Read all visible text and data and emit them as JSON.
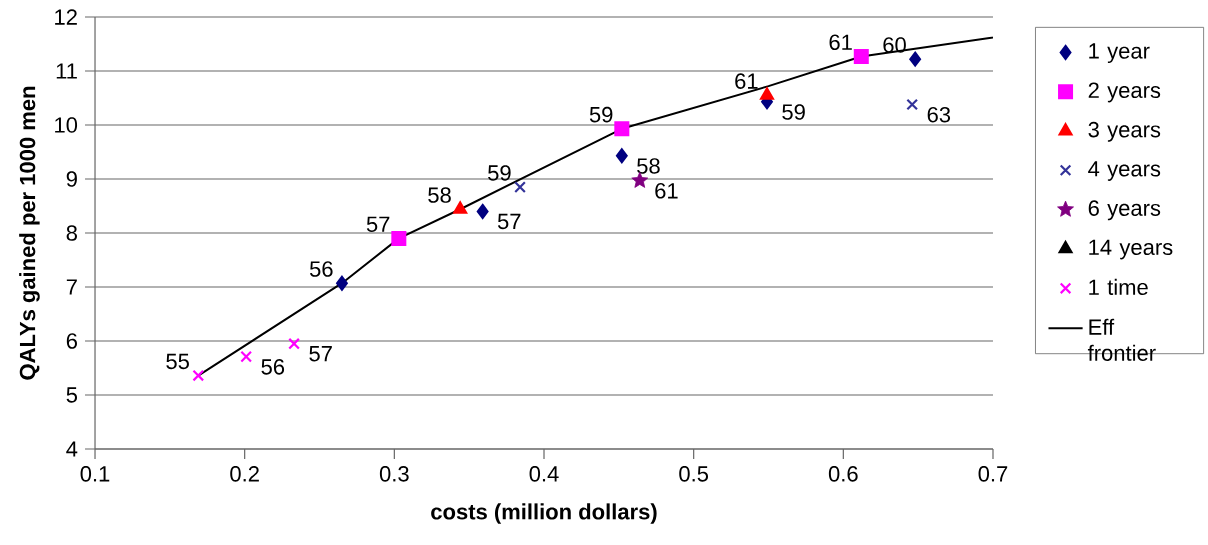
{
  "chart_data": {
    "type": "scatter",
    "xlabel": "costs (million  dollars)",
    "ylabel": "QALYs gained per 1000 men",
    "xlim": [
      0.1,
      0.7
    ],
    "ylim": [
      4,
      12
    ],
    "xticks": [
      0.1,
      0.2,
      0.3,
      0.4,
      0.5,
      0.6,
      0.7
    ],
    "yticks": [
      4,
      5,
      6,
      7,
      8,
      9,
      10,
      11,
      12
    ],
    "grid": "y",
    "legend": "right",
    "series": [
      {
        "name": "1 year",
        "color": "#000080",
        "marker": "diamond",
        "x": [
          0.265,
          0.359,
          0.452,
          0.549,
          0.648
        ],
        "values": [
          7.07,
          8.4,
          9.43,
          10.43,
          11.22
        ]
      },
      {
        "name": "2 years",
        "color": "#ff00ff",
        "marker": "square",
        "x": [
          0.303,
          0.452,
          0.612
        ],
        "values": [
          7.9,
          9.93,
          11.27
        ]
      },
      {
        "name": "3 years",
        "color": "#ff0000",
        "marker": "triangle",
        "x": [
          0.344,
          0.549
        ],
        "values": [
          8.44,
          10.55
        ]
      },
      {
        "name": "4 years",
        "color": "#333399",
        "marker": "cross",
        "x": [
          0.384,
          0.646
        ],
        "values": [
          8.85,
          10.38
        ]
      },
      {
        "name": "6 years",
        "color": "#800080",
        "marker": "star",
        "x": [
          0.464
        ],
        "values": [
          8.97
        ]
      },
      {
        "name": "14 years",
        "color": "#000000",
        "marker": "triangle"
      },
      {
        "name": "1 time",
        "color": "#ff00ff",
        "marker": "cross",
        "x": [
          0.169,
          0.201,
          0.233
        ],
        "values": [
          5.36,
          5.71,
          5.95
        ]
      },
      {
        "name": "Eff frontier",
        "type": "line",
        "color": "#000000",
        "marker": "none",
        "line_style": "solid",
        "x": [
          0.169,
          0.265,
          0.303,
          0.344,
          0.452,
          0.55,
          0.612,
          0.7
        ],
        "values": [
          5.36,
          7.07,
          7.9,
          8.44,
          9.93,
          10.72,
          11.27,
          11.62
        ]
      }
    ],
    "annotations": [
      {
        "text": "56",
        "x": 0.265,
        "y": 7.07
      },
      {
        "text": "57",
        "x": 0.359,
        "y": 8.4
      },
      {
        "text": "58",
        "x": 0.452,
        "y": 9.43
      },
      {
        "text": "59",
        "x": 0.549,
        "y": 10.43
      },
      {
        "text": "60",
        "x": 0.648,
        "y": 11.22
      },
      {
        "text": "57",
        "x": 0.303,
        "y": 7.9
      },
      {
        "text": "59",
        "x": 0.452,
        "y": 9.93
      },
      {
        "text": "61",
        "x": 0.612,
        "y": 11.27
      },
      {
        "text": "58",
        "x": 0.344,
        "y": 8.44
      },
      {
        "text": "61",
        "x": 0.549,
        "y": 10.55
      },
      {
        "text": "59",
        "x": 0.384,
        "y": 8.85
      },
      {
        "text": "63",
        "x": 0.646,
        "y": 10.38
      },
      {
        "text": "61",
        "x": 0.464,
        "y": 8.97
      },
      {
        "text": "55",
        "x": 0.169,
        "y": 5.36
      },
      {
        "text": "56",
        "x": 0.201,
        "y": 5.71
      },
      {
        "text": "57",
        "x": 0.233,
        "y": 5.95
      }
    ]
  }
}
